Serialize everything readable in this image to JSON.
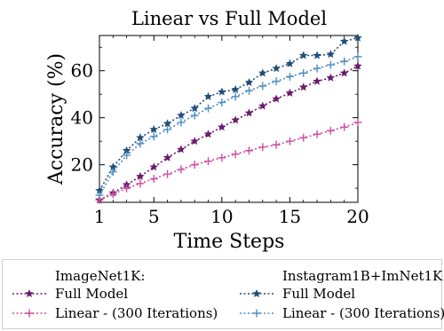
{
  "chart_data": {
    "type": "line",
    "title": "Linear vs Full Model",
    "xlabel": "Time Steps",
    "ylabel": "Accuracy (%)",
    "xlim": [
      1,
      20
    ],
    "ylim": [
      4,
      75
    ],
    "xticks": [
      1,
      5,
      10,
      15,
      20
    ],
    "yticks": [
      20,
      40,
      60
    ],
    "grid": false,
    "legend_position": "bottom",
    "legend_groups": [
      {
        "title": "ImageNet1K:",
        "series_names": [
          "Full Model",
          "Linear - (300 Iterations)"
        ]
      },
      {
        "title": "Instagram1B+ImNet1K:",
        "series_names": [
          "Full Model",
          "Linear - (300 Iterations)"
        ]
      }
    ],
    "series": [
      {
        "group": "ImageNet1K:",
        "name": "Full Model",
        "color": "#6a1b6e",
        "marker": "star",
        "x": [
          1,
          2,
          3,
          4,
          5,
          6,
          7,
          8,
          9,
          10,
          11,
          12,
          13,
          14,
          15,
          16,
          17,
          18,
          19,
          20
        ],
        "y": [
          5,
          8,
          11.5,
          15,
          19,
          23,
          26.5,
          30,
          33,
          36,
          39,
          42,
          45,
          48,
          50.5,
          53,
          55.5,
          57,
          59,
          62
        ]
      },
      {
        "group": "ImageNet1K:",
        "name": "Linear - (300 Iterations)",
        "color": "#d04ea3",
        "marker": "plus",
        "x": [
          1,
          2,
          3,
          4,
          5,
          6,
          7,
          8,
          9,
          10,
          11,
          12,
          13,
          14,
          15,
          16,
          17,
          18,
          19,
          20
        ],
        "y": [
          5,
          7.5,
          10,
          12,
          14,
          16,
          18,
          20,
          21.5,
          23,
          24.5,
          26,
          27.5,
          28.5,
          30,
          31.5,
          33,
          34.5,
          36,
          38
        ]
      },
      {
        "group": "Instagram1B+ImNet1K:",
        "name": "Full Model",
        "color": "#1f4e79",
        "marker": "star",
        "x": [
          1,
          2,
          3,
          4,
          5,
          6,
          7,
          8,
          9,
          10,
          11,
          12,
          13,
          14,
          15,
          16,
          17,
          18,
          19,
          20
        ],
        "y": [
          9,
          19,
          26,
          31.5,
          35,
          37.5,
          41,
          44,
          49,
          51,
          52,
          55,
          59,
          61,
          63,
          66.5,
          66.5,
          67,
          72.5,
          74
        ]
      },
      {
        "group": "Instagram1B+ImNet1K:",
        "name": "Linear - (300 Iterations)",
        "color": "#4d8fc4",
        "marker": "plus",
        "x": [
          1,
          2,
          3,
          4,
          5,
          6,
          7,
          8,
          9,
          10,
          11,
          12,
          13,
          14,
          15,
          16,
          17,
          18,
          19,
          20
        ],
        "y": [
          7,
          17,
          24,
          29,
          32,
          35,
          38,
          41,
          44,
          46.5,
          49,
          51.5,
          53.5,
          55.5,
          57.5,
          59,
          61,
          62.5,
          64,
          66
        ]
      }
    ]
  }
}
